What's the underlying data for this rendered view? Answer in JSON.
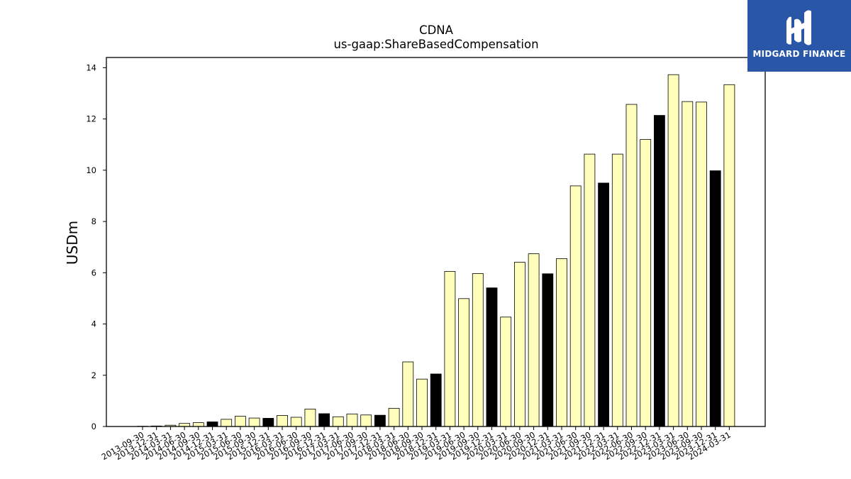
{
  "brand": {
    "name": "MIDGARD FINANCE",
    "background": "#2a56a8"
  },
  "chart_data": {
    "type": "bar",
    "title": "CDNA",
    "subtitle": "us-gaap:ShareBasedCompensation",
    "xlabel": "",
    "ylabel": "USDm",
    "ylim": [
      0,
      14.4
    ],
    "yticks": [
      0,
      2,
      4,
      6,
      8,
      10,
      12,
      14
    ],
    "grid": false,
    "legend": "none",
    "colors": {
      "quarter": "#ffffbb",
      "fiscal_year_end": "#000000",
      "edge": "#000000"
    },
    "categories": [
      "2013-09-30",
      "2013-12-31",
      "2014-03-31",
      "2014-06-30",
      "2014-09-30",
      "2014-12-31",
      "2015-03-31",
      "2015-06-30",
      "2015-09-30",
      "2015-12-31",
      "2016-03-31",
      "2016-06-30",
      "2016-09-30",
      "2016-12-31",
      "2017-03-31",
      "2017-06-30",
      "2017-09-30",
      "2017-12-31",
      "2018-03-31",
      "2018-06-30",
      "2018-09-30",
      "2018-12-31",
      "2019-03-31",
      "2019-06-30",
      "2019-09-30",
      "2019-12-31",
      "2020-03-31",
      "2020-06-30",
      "2020-09-30",
      "2020-12-31",
      "2021-03-31",
      "2021-06-30",
      "2021-09-30",
      "2021-12-31",
      "2022-03-31",
      "2022-06-30",
      "2022-09-30",
      "2022-12-31",
      "2023-03-31",
      "2023-06-30",
      "2023-09-30",
      "2023-12-31",
      "2024-03-31"
    ],
    "values": [
      0.01,
      0.02,
      0.05,
      0.12,
      0.15,
      0.18,
      0.28,
      0.4,
      0.33,
      0.32,
      0.43,
      0.36,
      0.68,
      0.5,
      0.38,
      0.49,
      0.45,
      0.44,
      0.71,
      2.52,
      1.85,
      2.05,
      6.05,
      4.99,
      5.97,
      5.41,
      4.27,
      6.41,
      6.74,
      5.96,
      6.55,
      9.39,
      10.63,
      9.5,
      10.63,
      12.57,
      11.2,
      12.14,
      13.73,
      12.68,
      12.66,
      9.98,
      13.34
    ],
    "highlight": [
      false,
      false,
      false,
      false,
      false,
      true,
      false,
      false,
      false,
      true,
      false,
      false,
      false,
      true,
      false,
      false,
      false,
      true,
      false,
      false,
      false,
      true,
      false,
      false,
      false,
      true,
      false,
      false,
      false,
      true,
      false,
      false,
      false,
      true,
      false,
      false,
      false,
      true,
      false,
      false,
      false,
      true,
      false
    ]
  }
}
